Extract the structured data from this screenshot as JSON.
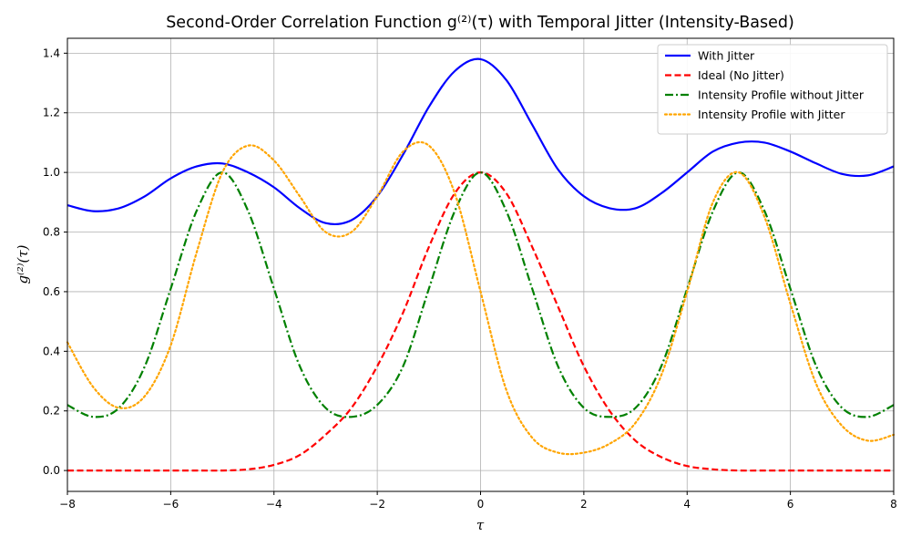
{
  "chart_data": {
    "type": "line",
    "title": "Second-Order Correlation Function g⁽²⁾(τ) with Temporal Jitter (Intensity-Based)",
    "xlabel": "τ",
    "ylabel": "g⁽²⁾(τ)",
    "xlim": [
      -8,
      8
    ],
    "ylim": [
      -0.07,
      1.45
    ],
    "xticks": [
      -8,
      -6,
      -4,
      -2,
      0,
      2,
      4,
      6,
      8
    ],
    "yticks": [
      0.0,
      0.2,
      0.4,
      0.6,
      0.8,
      1.0,
      1.2,
      1.4
    ],
    "grid": true,
    "legend_position": "upper-right",
    "x": [
      -8,
      -7.5,
      -7,
      -6.5,
      -6,
      -5.5,
      -5,
      -4.5,
      -4,
      -3.5,
      -3,
      -2.5,
      -2,
      -1.5,
      -1,
      -0.5,
      0,
      0.5,
      1,
      1.5,
      2,
      2.5,
      3,
      3.5,
      4,
      4.5,
      5,
      5.5,
      6,
      6.5,
      7,
      7.5,
      8
    ],
    "series": [
      {
        "name": "With Jitter",
        "color": "#0000ff",
        "dash": "solid",
        "values": [
          0.89,
          0.87,
          0.88,
          0.92,
          0.98,
          1.02,
          1.03,
          1.0,
          0.95,
          0.88,
          0.83,
          0.84,
          0.92,
          1.06,
          1.22,
          1.34,
          1.38,
          1.31,
          1.16,
          1.01,
          0.92,
          0.88,
          0.88,
          0.93,
          1.0,
          1.07,
          1.1,
          1.1,
          1.07,
          1.03,
          0.995,
          0.99,
          1.02
        ]
      },
      {
        "name": "Ideal (No Jitter)",
        "color": "#ff0000",
        "dash": "dashed",
        "values": [
          0.0,
          0.0,
          0.0,
          0.0,
          0.0,
          0.0,
          0.0,
          0.004,
          0.019,
          0.052,
          0.12,
          0.21,
          0.35,
          0.53,
          0.75,
          0.93,
          1.0,
          0.93,
          0.75,
          0.55,
          0.35,
          0.2,
          0.1,
          0.045,
          0.015,
          0.004,
          0.0,
          0.0,
          0.0,
          0.0,
          0.0,
          0.0,
          0.0
        ]
      },
      {
        "name": "Intensity Profile without Jitter",
        "color": "#008000",
        "dash": "dashdot",
        "values": [
          0.22,
          0.18,
          0.21,
          0.35,
          0.61,
          0.87,
          1.0,
          0.87,
          0.61,
          0.35,
          0.21,
          0.18,
          0.22,
          0.35,
          0.61,
          0.87,
          1.0,
          0.87,
          0.61,
          0.35,
          0.21,
          0.18,
          0.21,
          0.35,
          0.61,
          0.87,
          1.0,
          0.87,
          0.61,
          0.35,
          0.21,
          0.18,
          0.22
        ]
      },
      {
        "name": "Intensity Profile with Jitter",
        "color": "#ffa500",
        "dash": "dotted",
        "values": [
          0.43,
          0.28,
          0.21,
          0.25,
          0.42,
          0.73,
          1.0,
          1.09,
          1.04,
          0.92,
          0.8,
          0.8,
          0.92,
          1.07,
          1.09,
          0.93,
          0.6,
          0.27,
          0.11,
          0.06,
          0.06,
          0.09,
          0.16,
          0.32,
          0.6,
          0.9,
          1.0,
          0.85,
          0.56,
          0.29,
          0.15,
          0.1,
          0.12
        ]
      }
    ]
  }
}
